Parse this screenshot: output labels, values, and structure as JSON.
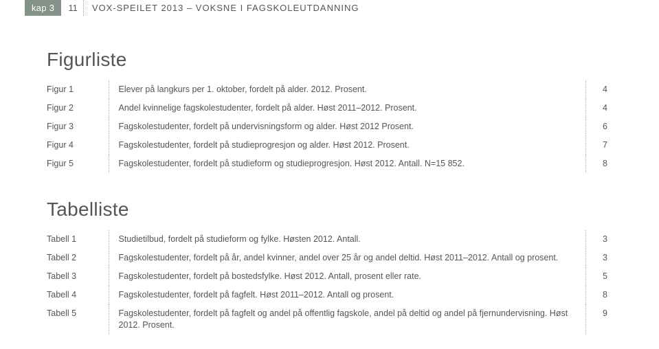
{
  "header": {
    "kap_label": "kap 3",
    "page_number": "11",
    "title": "VOX-SPEILET 2013 – VOKSNE I FAGSKOLEUTDANNING"
  },
  "figurliste": {
    "heading": "Figurliste",
    "rows": [
      {
        "label": "Figur 1",
        "desc": "Elever på langkurs per 1. oktober, fordelt på alder. 2012. Prosent.",
        "page": "4"
      },
      {
        "label": "Figur 2",
        "desc": "Andel kvinnelige fagskolestudenter, fordelt på alder. Høst 2011–2012. Prosent.",
        "page": "4"
      },
      {
        "label": "Figur 3",
        "desc": "Fagskolestudenter, fordelt på undervisningsform og alder. Høst 2012 Prosent.",
        "page": "6"
      },
      {
        "label": "Figur 4",
        "desc": "Fagskolestudenter, fordelt på studieprogresjon og alder. Høst 2012. Prosent.",
        "page": "7"
      },
      {
        "label": "Figur 5",
        "desc": "Fagskolestudenter, fordelt på studieform og studieprogresjon. Høst 2012. Antall. N=15 852.",
        "page": "8"
      }
    ]
  },
  "tabelliste": {
    "heading": "Tabelliste",
    "rows": [
      {
        "label": "Tabell 1",
        "desc": "Studietilbud, fordelt på studieform og fylke. Høsten 2012. Antall.",
        "page": "3"
      },
      {
        "label": "Tabell 2",
        "desc": "Fagskolestudenter, fordelt på år, andel kvinner, andel over 25 år og andel deltid. Høst 2011–2012. Antall og prosent.",
        "page": "3"
      },
      {
        "label": "Tabell 3",
        "desc": "Fagskolestudenter, fordelt på bostedsfylke. Høst 2012. Antall, prosent eller rate.",
        "page": "5"
      },
      {
        "label": "Tabell 4",
        "desc": "Fagskolestudenter, fordelt på fagfelt. Høst 2011–2012. Antall og prosent.",
        "page": "8"
      },
      {
        "label": "Tabell 5",
        "desc": "Fagskolestudenter, fordelt på fagfelt og andel på offentlig fagskole, andel på deltid og andel på fjernundervisning. Høst 2012. Prosent.",
        "page": "9"
      }
    ]
  },
  "style": {
    "badge_bg": "#859289",
    "text_color": "#555555",
    "dotted_color": "#aaaaaa",
    "heading_fontsize": 28,
    "row_fontsize": 12.5
  }
}
